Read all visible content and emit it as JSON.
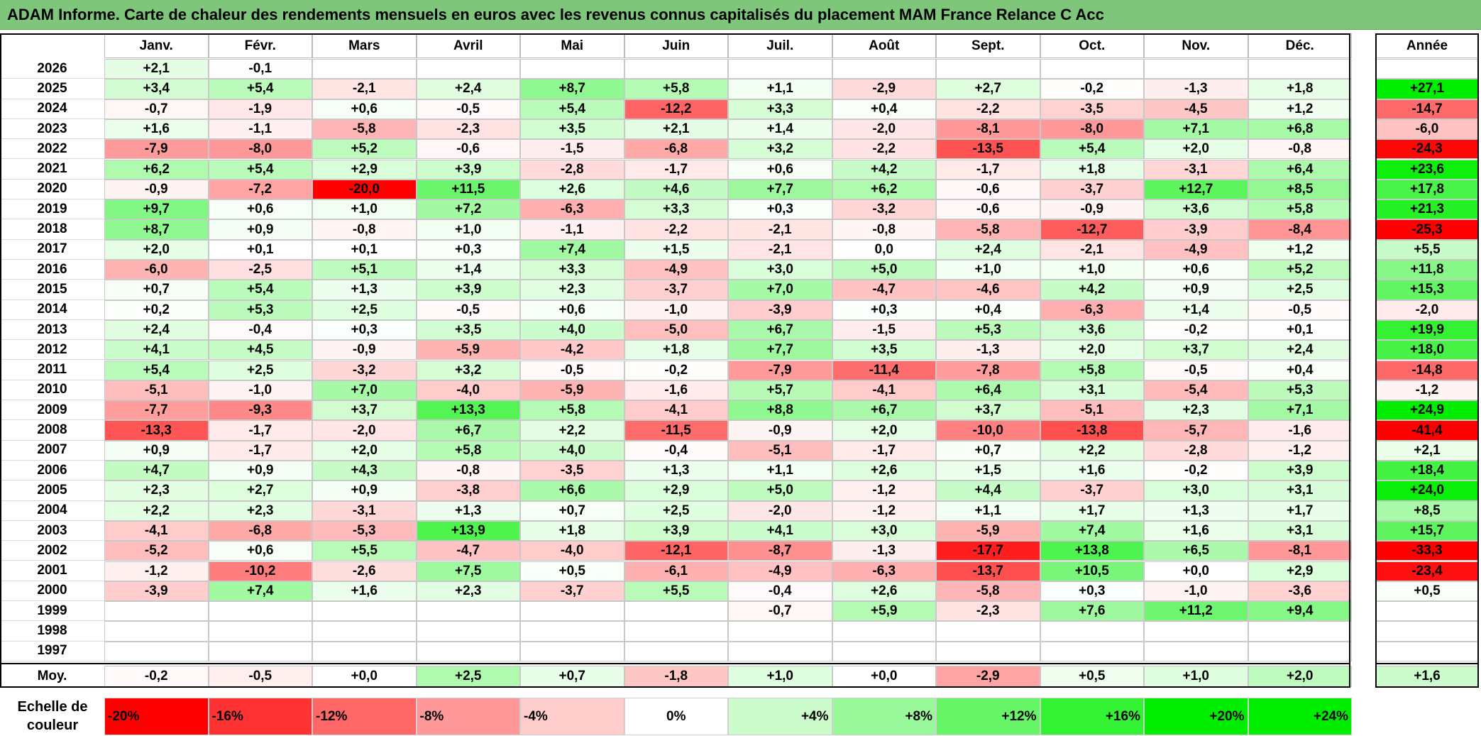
{
  "title": "ADAM Informe. Carte de chaleur des rendements mensuels en euros avec les revenus connus capitalisés du placement MAM France Relance C Acc",
  "chart_data": {
    "type": "heatmap",
    "title": "ADAM Informe. Carte de chaleur des rendements mensuels en euros avec les revenus connus capitalisés du placement MAM France Relance C Acc",
    "months": [
      "Janv.",
      "Févr.",
      "Mars",
      "Avril",
      "Mai",
      "Juin",
      "Juil.",
      "Août",
      "Sept.",
      "Oct.",
      "Nov.",
      "Déc."
    ],
    "annual_header": "Année",
    "rows": [
      {
        "year": "2026",
        "values": [
          "+2,1",
          "-0,1",
          "",
          "",
          "",
          "",
          "",
          "",
          "",
          "",
          "",
          ""
        ],
        "annual": ""
      },
      {
        "year": "2025",
        "values": [
          "+3,4",
          "+5,4",
          "-2,1",
          "+2,4",
          "+8,7",
          "+5,8",
          "+1,1",
          "-2,9",
          "+2,7",
          "-0,2",
          "-1,3",
          "+1,8"
        ],
        "annual": "+27,1"
      },
      {
        "year": "2024",
        "values": [
          "-0,7",
          "-1,9",
          "+0,6",
          "-0,5",
          "+5,4",
          "-12,2",
          "+3,3",
          "+0,4",
          "-2,2",
          "-3,5",
          "-4,5",
          "+1,2"
        ],
        "annual": "-14,7"
      },
      {
        "year": "2023",
        "values": [
          "+1,6",
          "-1,1",
          "-5,8",
          "-2,3",
          "+3,5",
          "+2,1",
          "+1,4",
          "-2,0",
          "-8,1",
          "-8,0",
          "+7,1",
          "+6,8"
        ],
        "annual": "-6,0"
      },
      {
        "year": "2022",
        "values": [
          "-7,9",
          "-8,0",
          "+5,2",
          "-0,6",
          "-1,5",
          "-6,8",
          "+3,2",
          "-2,2",
          "-13,5",
          "+5,4",
          "+2,0",
          "-0,8"
        ],
        "annual": "-24,3"
      },
      {
        "year": "2021",
        "values": [
          "+6,2",
          "+5,4",
          "+2,9",
          "+3,9",
          "-2,8",
          "-1,7",
          "+0,6",
          "+4,2",
          "-1,7",
          "+1,8",
          "-3,1",
          "+6,4"
        ],
        "annual": "+23,6"
      },
      {
        "year": "2020",
        "values": [
          "-0,9",
          "-7,2",
          "-20,0",
          "+11,5",
          "+2,6",
          "+4,6",
          "+7,7",
          "+6,2",
          "-0,6",
          "-3,7",
          "+12,7",
          "+8,5"
        ],
        "annual": "+17,8"
      },
      {
        "year": "2019",
        "values": [
          "+9,7",
          "+0,6",
          "+1,0",
          "+7,2",
          "-6,3",
          "+3,3",
          "+0,3",
          "-3,2",
          "-0,6",
          "-0,9",
          "+3,6",
          "+5,8"
        ],
        "annual": "+21,3"
      },
      {
        "year": "2018",
        "values": [
          "+8,7",
          "+0,9",
          "-0,8",
          "+1,0",
          "-1,1",
          "-2,2",
          "-2,1",
          "-0,8",
          "-5,8",
          "-12,7",
          "-3,9",
          "-8,4"
        ],
        "annual": "-25,3"
      },
      {
        "year": "2017",
        "values": [
          "+2,0",
          "+0,1",
          "+0,1",
          "+0,3",
          "+7,4",
          "+1,5",
          "-2,1",
          "0,0",
          "+2,4",
          "-2,1",
          "-4,9",
          "+1,2"
        ],
        "annual": "+5,5"
      },
      {
        "year": "2016",
        "values": [
          "-6,0",
          "-2,5",
          "+5,1",
          "+1,4",
          "+3,3",
          "-4,9",
          "+3,0",
          "+5,0",
          "+1,0",
          "+1,0",
          "+0,6",
          "+5,2"
        ],
        "annual": "+11,8"
      },
      {
        "year": "2015",
        "values": [
          "+0,7",
          "+5,4",
          "+1,3",
          "+3,9",
          "+2,3",
          "-3,7",
          "+7,0",
          "-4,7",
          "-4,6",
          "+4,2",
          "+0,9",
          "+2,5"
        ],
        "annual": "+15,3"
      },
      {
        "year": "2014",
        "values": [
          "+0,2",
          "+5,3",
          "+2,5",
          "-0,5",
          "+0,6",
          "-1,0",
          "-3,9",
          "+0,3",
          "+0,4",
          "-6,3",
          "+1,4",
          "-0,5"
        ],
        "annual": "-2,0"
      },
      {
        "year": "2013",
        "values": [
          "+2,4",
          "-0,4",
          "+0,3",
          "+3,5",
          "+4,0",
          "-5,0",
          "+6,7",
          "-1,5",
          "+5,3",
          "+3,6",
          "-0,2",
          "+0,1"
        ],
        "annual": "+19,9"
      },
      {
        "year": "2012",
        "values": [
          "+4,1",
          "+4,5",
          "-0,9",
          "-5,9",
          "-4,2",
          "+1,8",
          "+7,7",
          "+3,5",
          "-1,3",
          "+2,0",
          "+3,7",
          "+2,4"
        ],
        "annual": "+18,0"
      },
      {
        "year": "2011",
        "values": [
          "+5,4",
          "+2,5",
          "-3,2",
          "+3,2",
          "-0,5",
          "-0,2",
          "-7,9",
          "-11,4",
          "-7,8",
          "+5,8",
          "-0,5",
          "+0,4"
        ],
        "annual": "-14,8"
      },
      {
        "year": "2010",
        "values": [
          "-5,1",
          "-1,0",
          "+7,0",
          "-4,0",
          "-5,9",
          "-1,6",
          "+5,7",
          "-4,1",
          "+6,4",
          "+3,1",
          "-5,4",
          "+5,3"
        ],
        "annual": "-1,2"
      },
      {
        "year": "2009",
        "values": [
          "-7,7",
          "-9,3",
          "+3,7",
          "+13,3",
          "+5,8",
          "-4,1",
          "+8,8",
          "+6,7",
          "+3,7",
          "-5,1",
          "+2,3",
          "+7,1"
        ],
        "annual": "+24,9"
      },
      {
        "year": "2008",
        "values": [
          "-13,3",
          "-1,7",
          "-2,0",
          "+6,7",
          "+2,2",
          "-11,5",
          "-0,9",
          "+2,0",
          "-10,0",
          "-13,8",
          "-5,7",
          "-1,6"
        ],
        "annual": "-41,4"
      },
      {
        "year": "2007",
        "values": [
          "+0,9",
          "-1,7",
          "+2,0",
          "+5,8",
          "+4,0",
          "-0,4",
          "-5,1",
          "-1,7",
          "+0,7",
          "+2,2",
          "-2,8",
          "-1,2"
        ],
        "annual": "+2,1"
      },
      {
        "year": "2006",
        "values": [
          "+4,7",
          "+0,9",
          "+4,3",
          "-0,8",
          "-3,5",
          "+1,3",
          "+1,1",
          "+2,6",
          "+1,5",
          "+1,6",
          "-0,2",
          "+3,9"
        ],
        "annual": "+18,4"
      },
      {
        "year": "2005",
        "values": [
          "+2,3",
          "+2,7",
          "+0,9",
          "-3,8",
          "+6,6",
          "+2,9",
          "+5,0",
          "-1,2",
          "+4,4",
          "-3,7",
          "+3,0",
          "+3,1"
        ],
        "annual": "+24,0"
      },
      {
        "year": "2004",
        "values": [
          "+2,2",
          "+2,3",
          "-3,1",
          "+1,3",
          "+0,7",
          "+2,5",
          "-2,0",
          "-1,2",
          "+1,1",
          "+1,7",
          "+1,3",
          "+1,7"
        ],
        "annual": "+8,5"
      },
      {
        "year": "2003",
        "values": [
          "-4,1",
          "-6,8",
          "-5,3",
          "+13,9",
          "+1,8",
          "+3,9",
          "+4,1",
          "+3,0",
          "-5,9",
          "+7,4",
          "+1,6",
          "+3,1"
        ],
        "annual": "+15,7"
      },
      {
        "year": "2002",
        "values": [
          "-5,2",
          "+0,6",
          "+5,5",
          "-4,7",
          "-4,0",
          "-12,1",
          "-8,7",
          "-1,3",
          "-17,7",
          "+13,8",
          "+6,5",
          "-8,1"
        ],
        "annual": "-33,3"
      },
      {
        "year": "2001",
        "values": [
          "-1,2",
          "-10,2",
          "-2,6",
          "+7,5",
          "+0,5",
          "-6,1",
          "-4,9",
          "-6,3",
          "-13,7",
          "+10,5",
          "+0,0",
          "+2,9"
        ],
        "annual": "-23,4"
      },
      {
        "year": "2000",
        "values": [
          "-3,9",
          "+7,4",
          "+1,6",
          "+2,3",
          "-3,7",
          "+5,5",
          "-0,4",
          "+2,6",
          "-5,8",
          "+0,3",
          "-1,0",
          "-3,6"
        ],
        "annual": "+0,5"
      },
      {
        "year": "1999",
        "values": [
          "",
          "",
          "",
          "",
          "",
          "",
          "-0,7",
          "+5,9",
          "-2,3",
          "+7,6",
          "+11,2",
          "+9,4"
        ],
        "annual": ""
      },
      {
        "year": "1998",
        "values": [
          "",
          "",
          "",
          "",
          "",
          "",
          "",
          "",
          "",
          "",
          "",
          ""
        ],
        "annual": ""
      },
      {
        "year": "1997",
        "values": [
          "",
          "",
          "",
          "",
          "",
          "",
          "",
          "",
          "",
          "",
          "",
          ""
        ],
        "annual": ""
      }
    ],
    "average": {
      "label": "Moy.",
      "values": [
        "-0,2",
        "-0,5",
        "+0,0",
        "+2,5",
        "+0,7",
        "-1,8",
        "+1,0",
        "+0,0",
        "-2,9",
        "+0,5",
        "+1,0",
        "+2,0"
      ],
      "annual": "+1,6"
    },
    "color_scale": {
      "label": "Echelle de couleur",
      "steps": [
        {
          "label": "-20%",
          "value": -20
        },
        {
          "label": "-16%",
          "value": -16
        },
        {
          "label": "-12%",
          "value": -12
        },
        {
          "label": "-8%",
          "value": -8
        },
        {
          "label": "-4%",
          "value": -4
        },
        {
          "label": "0%",
          "value": 0
        },
        {
          "label": "+4%",
          "value": 4
        },
        {
          "label": "+8%",
          "value": 8
        },
        {
          "label": "+12%",
          "value": 12
        },
        {
          "label": "+16%",
          "value": 16
        },
        {
          "label": "+20%",
          "value": 20
        },
        {
          "label": "+24%",
          "value": 24
        }
      ]
    },
    "colors": {
      "negative_max": "#ff0000",
      "neutral": "#ffffff",
      "positive_max": "#00ee00",
      "title_bar": "#7dc67a"
    }
  }
}
